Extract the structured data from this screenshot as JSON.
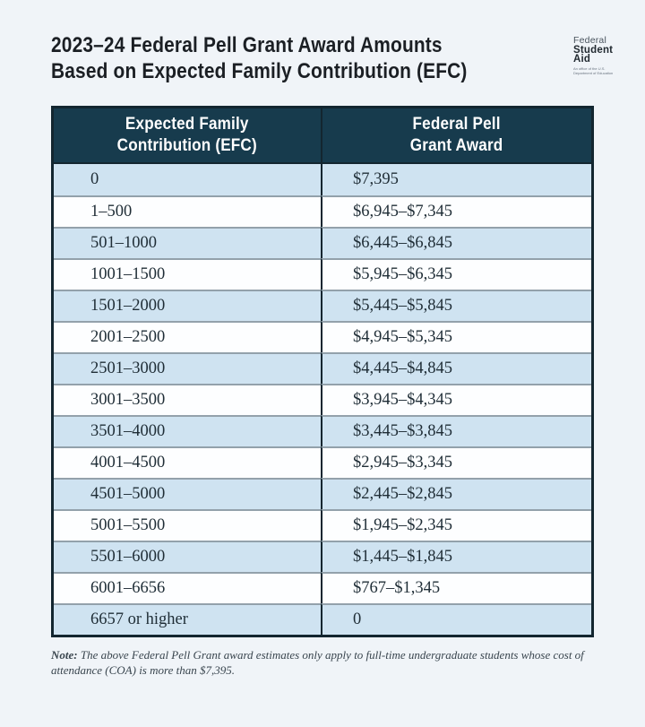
{
  "header": {
    "title_line1": "2023–24 Federal Pell Grant Award Amounts",
    "title_line2": "Based on Expected Family Contribution (EFC)",
    "logo": {
      "word1": "Federal",
      "word2": "Student",
      "word3": "Aid",
      "tagline": "An office of the U.S. Department of Education"
    }
  },
  "table": {
    "columns": [
      "Expected Family\nContribution (EFC)",
      "Federal Pell\nGrant Award"
    ],
    "rows": [
      [
        "0",
        "$7,395"
      ],
      [
        "1–500",
        "$6,945–$7,345"
      ],
      [
        "501–1000",
        "$6,445–$6,845"
      ],
      [
        "1001–1500",
        "$5,945–$6,345"
      ],
      [
        "1501–2000",
        "$5,445–$5,845"
      ],
      [
        "2001–2500",
        "$4,945–$5,345"
      ],
      [
        "2501–3000",
        "$4,445–$4,845"
      ],
      [
        "3001–3500",
        "$3,945–$4,345"
      ],
      [
        "3501–4000",
        "$3,445–$3,845"
      ],
      [
        "4001–4500",
        "$2,945–$3,345"
      ],
      [
        "4501–5000",
        "$2,445–$2,845"
      ],
      [
        "5001–5500",
        "$1,945–$2,345"
      ],
      [
        "5501–6000",
        "$1,445–$1,845"
      ],
      [
        "6001–6656",
        "$767–$1,345"
      ],
      [
        "6657 or higher",
        "0"
      ]
    ]
  },
  "note": {
    "label": "Note:",
    "text": " The above Federal Pell Grant award estimates only apply to full-time undergraduate students whose cost of attendance (COA) is more than $7,395."
  },
  "colors": {
    "page_bg": "#f0f4f8",
    "header_bg": "#173b4d",
    "header_text": "#ffffff",
    "row_alt": "#cfe3f1",
    "row_white": "#fdfeff",
    "border_dark": "#132630",
    "divider_gray": "#93a1ab",
    "title_color": "#1b1f24",
    "cell_text": "#1f2d36",
    "note_color": "#39454e"
  }
}
